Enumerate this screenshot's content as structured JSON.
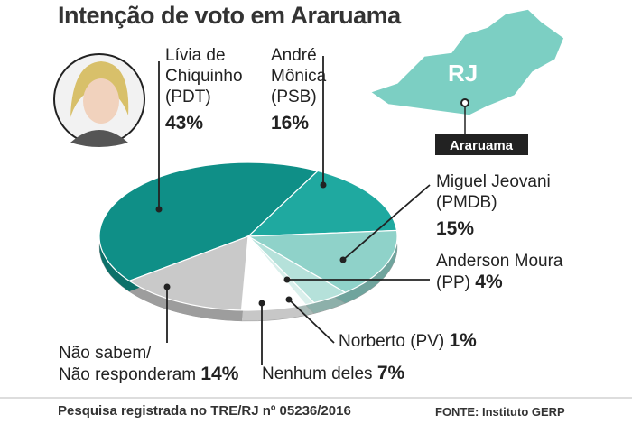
{
  "title": "Intenção de voto em Araruama",
  "map": {
    "state": "RJ",
    "city": "Araruama"
  },
  "chart_data": {
    "type": "pie",
    "categories": [
      "Lívia de\nChiquinho\n(PDT)",
      "André\nMônica\n(PSB)",
      "Miguel Jeovani\n(PMDB)",
      "Anderson Moura\n(PP)",
      "Norberto (PV)",
      "Nenhum deles",
      "Não sabem/\nNão responderam"
    ],
    "values": [
      43,
      16,
      15,
      4,
      1,
      7,
      14
    ],
    "value_labels": [
      "43%",
      "16%",
      "15%",
      "4%",
      "1%",
      "7%",
      "14%"
    ],
    "colors": [
      "#0f8f87",
      "#1fa9a0",
      "#8fd2c9",
      "#b5e1da",
      "#d9efeb",
      "#ffffff",
      "#c9c9c9"
    ]
  },
  "footer": {
    "note": "Pesquisa registrada no TRE/RJ nº 05236/2016",
    "source": "FONTE: Instituto GERP"
  }
}
